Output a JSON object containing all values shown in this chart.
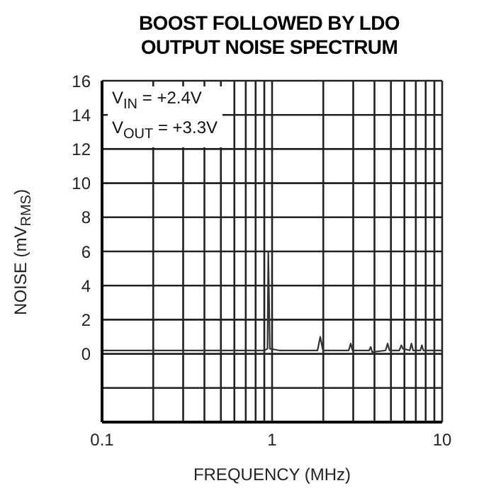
{
  "chart_data": {
    "type": "line",
    "title": "BOOST FOLLOWED BY LDO OUTPUT NOISE SPECTRUM",
    "xlabel": "FREQUENCY (MHz)",
    "ylabel": "NOISE (mV$_{RMS}$)",
    "annotations": [
      "V$_{IN}$ = +2.4V",
      "V$_{OUT}$ = +3.3V"
    ],
    "log": "x",
    "grid": true,
    "marker": "none",
    "line_style": "solid",
    "xlim": [
      0.1,
      10
    ],
    "xticks": [
      0.1,
      {
        "value": 0.2,
        "label": null
      },
      {
        "value": 0.3,
        "label": null
      },
      {
        "value": 0.4,
        "label": null
      },
      {
        "value": 0.5,
        "label": null
      },
      {
        "value": 0.6,
        "label": null
      },
      {
        "value": 0.7,
        "label": null
      },
      {
        "value": 0.8,
        "label": null
      },
      {
        "value": 0.9,
        "label": null
      },
      1,
      {
        "value": 2,
        "label": null
      },
      {
        "value": 3,
        "label": null
      },
      {
        "value": 4,
        "label": null
      },
      {
        "value": 5,
        "label": null
      },
      {
        "value": 6,
        "label": null
      },
      {
        "value": 7,
        "label": null
      },
      {
        "value": 8,
        "label": null
      },
      {
        "value": 9,
        "label": null
      },
      10
    ],
    "ylim": [
      -4,
      16
    ],
    "yticks": [
      {
        "value": -4,
        "label": null
      },
      {
        "value": -2,
        "label": null
      },
      0,
      2,
      4,
      6,
      8,
      10,
      12,
      14,
      16
    ],
    "series": [
      {
        "color": "#333333",
        "x": [
          0.1,
          0.2,
          0.4,
          0.7,
          0.9,
          0.94,
          0.95,
          0.97,
          1.1,
          1.5,
          1.85,
          1.92,
          1.99,
          2.5,
          2.82,
          2.9,
          2.97,
          3.5,
          3.72,
          3.8,
          3.88,
          4.65,
          4.78,
          4.9,
          5.6,
          5.75,
          5.88,
          6.45,
          6.6,
          6.75,
          7.45,
          7.6,
          7.75,
          9.0,
          10
        ],
        "values": [
          0.2,
          0.2,
          0.2,
          0.2,
          0.2,
          0.3,
          6,
          0.3,
          0.2,
          0.2,
          0.2,
          1.0,
          0.2,
          0.2,
          0.2,
          0.6,
          0.2,
          0.2,
          0.2,
          0.4,
          0.1,
          0.2,
          0.6,
          0.2,
          0.2,
          0.5,
          0.3,
          0.2,
          0.6,
          0.2,
          0.2,
          0.5,
          0.2,
          0.2,
          0.2
        ]
      }
    ]
  }
}
